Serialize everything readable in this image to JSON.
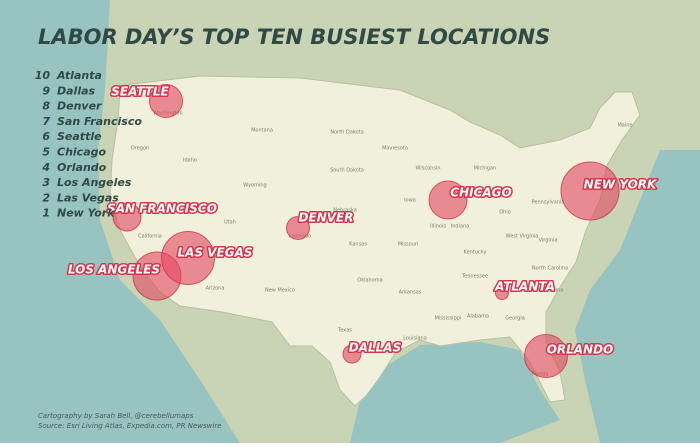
{
  "title": "LABOR DAY’S TOP TEN BUSIEST LOCATIONS",
  "ranking": [
    {
      "rank": 10,
      "city": "Atlanta"
    },
    {
      "rank": 9,
      "city": "Dallas"
    },
    {
      "rank": 8,
      "city": "Denver"
    },
    {
      "rank": 7,
      "city": "San Francisco"
    },
    {
      "rank": 6,
      "city": "Seattle"
    },
    {
      "rank": 5,
      "city": "Chicago"
    },
    {
      "rank": 4,
      "city": "Orlando"
    },
    {
      "rank": 3,
      "city": "Los Angeles"
    },
    {
      "rank": 2,
      "city": "Las Vegas"
    },
    {
      "rank": 1,
      "city": "New York"
    }
  ],
  "city_labels": [
    "ATLANTA",
    "DALLAS",
    "DENVER",
    "SAN FRANCISCO",
    "SEATTLE",
    "CHICAGO",
    "ORLANDO",
    "LOS ANGELES",
    "LAS VEGAS",
    "NEW YORK"
  ],
  "state_labels": [
    "Washington",
    "Oregon",
    "Idaho",
    "Montana",
    "Wyoming",
    "Utah",
    "Colorado",
    "Arizona",
    "New Mexico",
    "California",
    "North Dakota",
    "South Dakota",
    "Nebraska",
    "Kansas",
    "Oklahoma",
    "Texas",
    "Minnesota",
    "Iowa",
    "Missouri",
    "Arkansas",
    "Louisiana",
    "Mississippi",
    "Alabama",
    "Georgia",
    "Florida",
    "Tennessee",
    "Kentucky",
    "Illinois",
    "Indiana",
    "Ohio",
    "Michigan",
    "Wisconsin",
    "Pennsylvania",
    "Virginia",
    "West Virginia",
    "North Carolina",
    "South Carolina",
    "Maine"
  ],
  "credits": [
    "Cartography by Sarah Bell, @cerebellumaps",
    "Source: Esri Living Atlas, Expedia.com, PR Newswire"
  ]
}
